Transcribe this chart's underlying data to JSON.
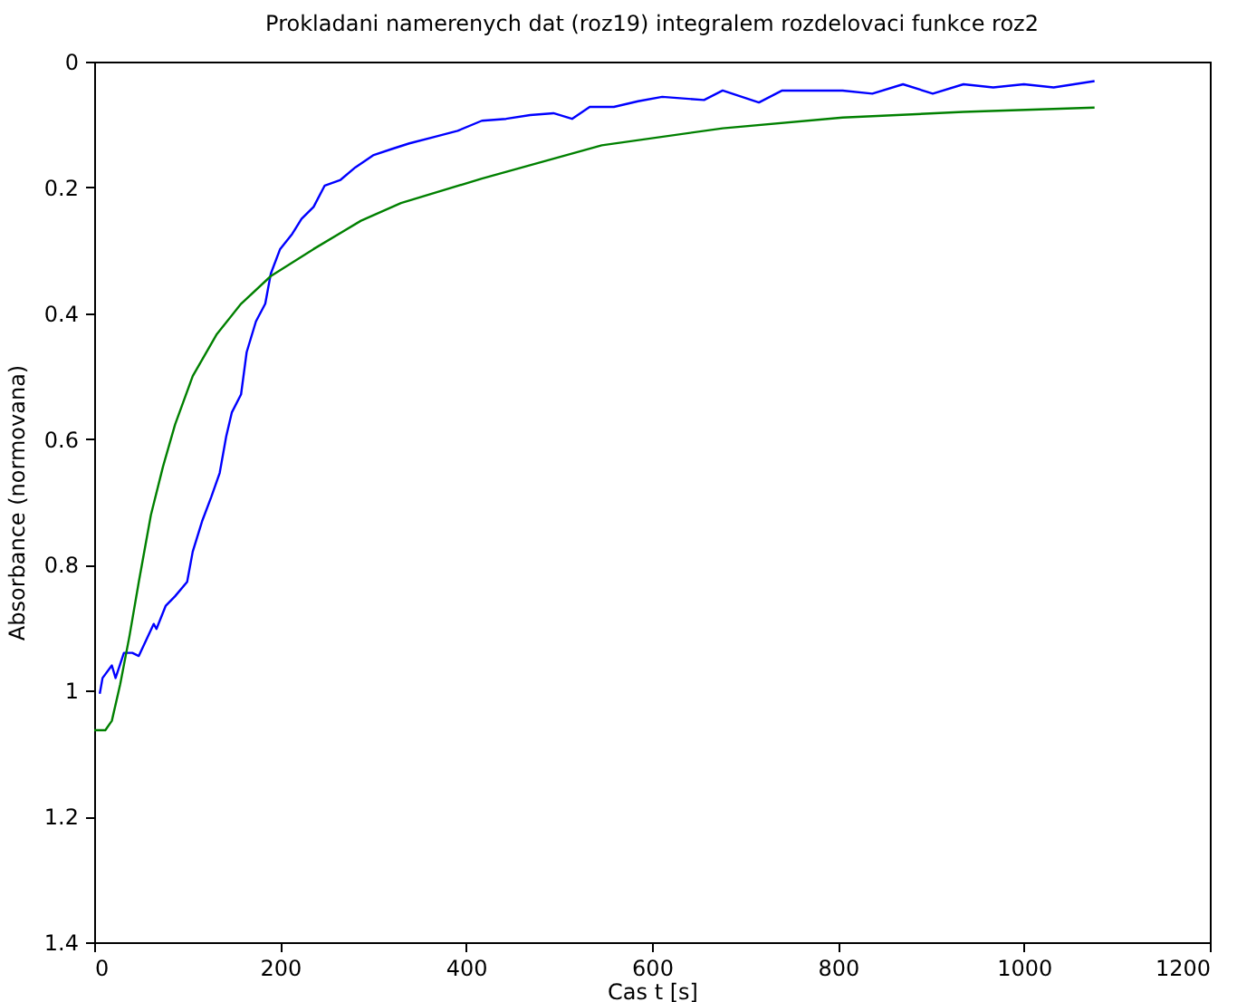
{
  "chart_data": {
    "type": "line",
    "title": "Prokladani namerenych dat (roz19) integralem rozdelovaci funkce roz2",
    "xlabel": "Cas t [s]",
    "ylabel": "Absorbance (normovana)",
    "xlim": [
      0,
      1200
    ],
    "xticks": [
      0,
      200,
      400,
      600,
      800,
      1000,
      1200
    ],
    "ylim": [
      1.4,
      0
    ],
    "yticks": [
      0,
      0.2,
      0.4,
      0.6,
      0.8,
      1,
      1.2,
      1.4
    ],
    "grid": false,
    "marker": "none",
    "line_style": "solid",
    "series": [
      {
        "color": "#0000ff",
        "x": [
          6,
          9,
          19,
          23,
          32,
          41,
          48,
          58,
          64,
          67,
          77,
          87,
          100,
          106,
          116,
          126,
          135,
          142,
          148,
          158,
          164,
          174,
          184,
          190,
          200,
          213,
          223,
          236,
          248,
          265,
          281,
          300,
          320,
          339,
          365,
          391,
          417,
          443,
          469,
          494,
          514,
          533,
          559,
          585,
          611,
          656,
          676,
          715,
          740,
          805,
          837,
          870,
          902,
          935,
          967,
          1000,
          1032,
          1076
        ],
        "values": [
          1.005,
          0.98,
          0.96,
          0.98,
          0.94,
          0.94,
          0.945,
          0.913,
          0.894,
          0.902,
          0.865,
          0.85,
          0.827,
          0.779,
          0.731,
          0.692,
          0.654,
          0.596,
          0.558,
          0.529,
          0.462,
          0.413,
          0.385,
          0.337,
          0.298,
          0.274,
          0.25,
          0.231,
          0.197,
          0.188,
          0.168,
          0.149,
          0.139,
          0.13,
          0.12,
          0.11,
          0.094,
          0.091,
          0.085,
          0.082,
          0.091,
          0.072,
          0.072,
          0.063,
          0.056,
          0.061,
          0.046,
          0.065,
          0.046,
          0.046,
          0.051,
          0.036,
          0.051,
          0.036,
          0.041,
          0.036,
          0.041,
          0.031
        ]
      },
      {
        "color": "#008000",
        "x": [
          0,
          12,
          19,
          28,
          38,
          48,
          61,
          74,
          87,
          106,
          132,
          158,
          190,
          236,
          287,
          330,
          417,
          546,
          676,
          805,
          935,
          1076
        ],
        "values": [
          1.063,
          1.063,
          1.048,
          0.99,
          0.913,
          0.827,
          0.721,
          0.644,
          0.577,
          0.5,
          0.433,
          0.385,
          0.341,
          0.298,
          0.253,
          0.225,
          0.186,
          0.133,
          0.106,
          0.089,
          0.08,
          0.073
        ]
      }
    ]
  }
}
